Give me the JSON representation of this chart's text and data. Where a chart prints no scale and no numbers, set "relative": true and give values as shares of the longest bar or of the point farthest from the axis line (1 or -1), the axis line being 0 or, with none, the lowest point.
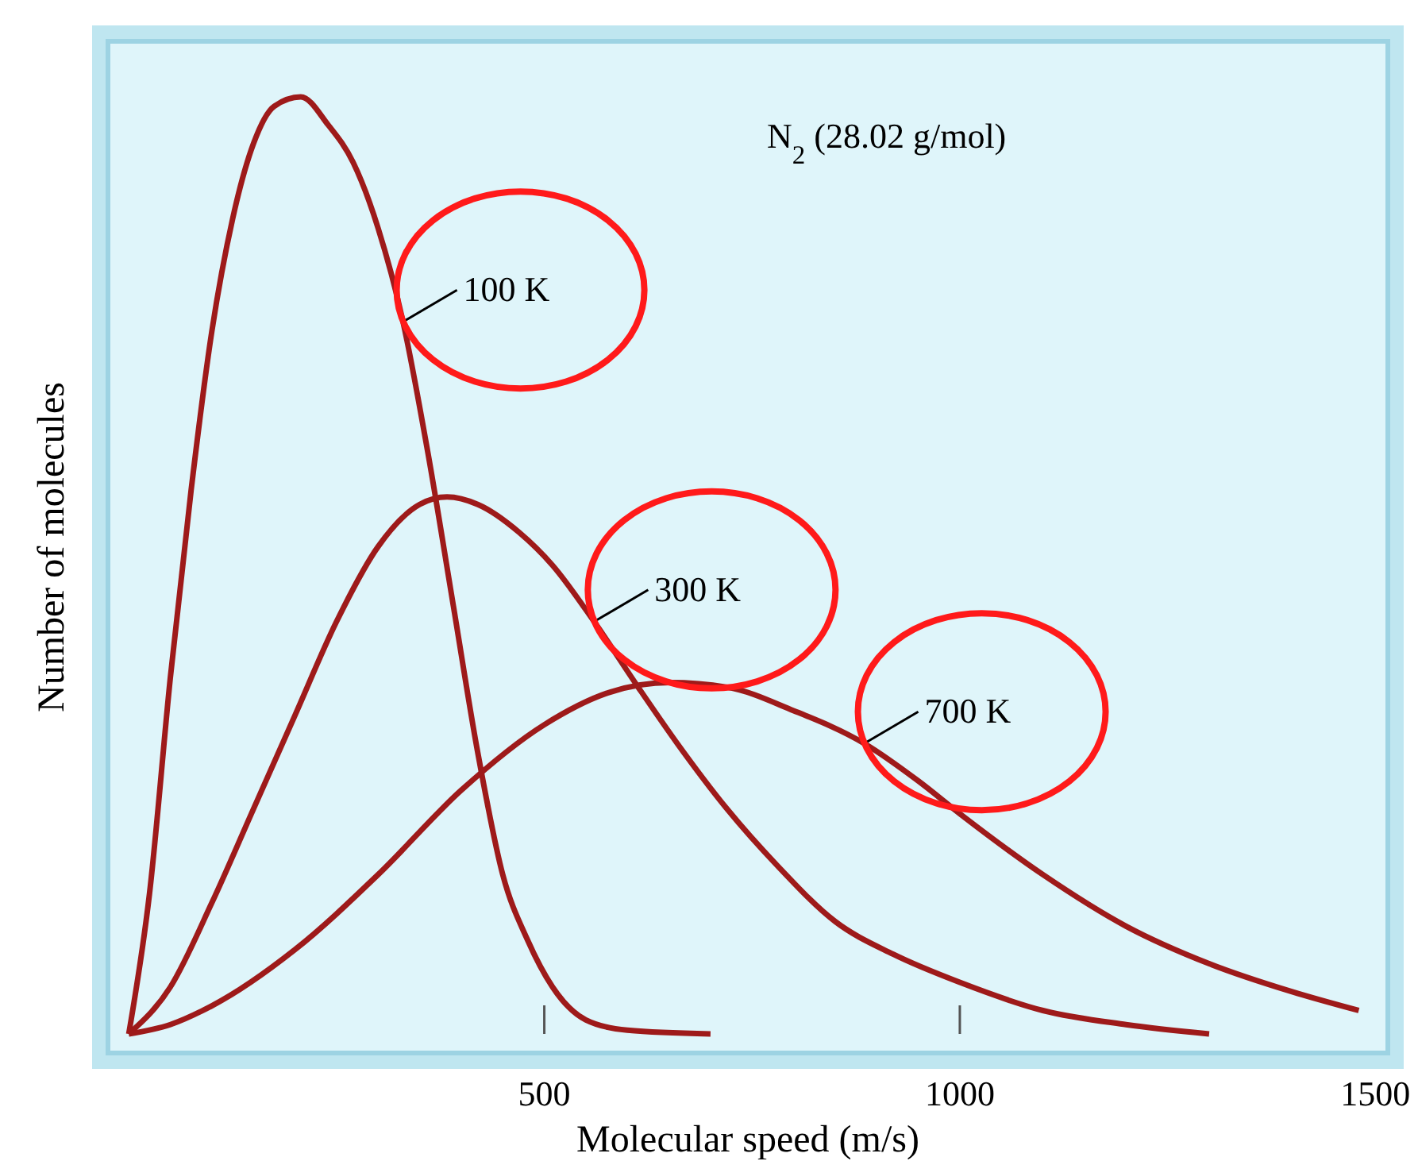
{
  "chart_data": {
    "type": "line",
    "relative": true,
    "xlabel": "Molecular speed (m/s)",
    "ylabel": "Number of molecules",
    "annotations": [
      "N$_{2}$ (28.02 g/mol)"
    ],
    "xlim": [
      -25,
      1515
    ],
    "xticks": [
      500,
      1000,
      1500
    ],
    "grid": false,
    "marker": "none",
    "line_style": "solid",
    "series": [
      {
        "name": "100 K",
        "color": "#9e1a1a",
        "x": [
          0,
          25,
          50,
          75,
          100,
          125,
          150,
          175,
          207,
          240,
          270,
          300,
          330,
          360,
          390,
          420,
          450,
          480,
          510,
          550,
          600,
          700
        ],
        "values": [
          0,
          0.15,
          0.38,
          0.58,
          0.75,
          0.87,
          0.95,
          0.99,
          1,
          0.97,
          0.93,
          0.86,
          0.76,
          0.62,
          0.46,
          0.3,
          0.17,
          0.1,
          0.05,
          0.015,
          0.004,
          0
        ]
      },
      {
        "name": "300 K",
        "color": "#9e1a1a",
        "x": [
          0,
          50,
          100,
          150,
          200,
          250,
          300,
          350,
          383,
          420,
          470,
          510,
          560,
          613,
          660,
          720,
          780,
          850,
          920,
          1000,
          1100,
          1200,
          1300
        ],
        "values": [
          0,
          0.05,
          0.14,
          0.24,
          0.34,
          0.44,
          0.52,
          0.565,
          0.573,
          0.565,
          0.535,
          0.5,
          0.44,
          0.37,
          0.31,
          0.24,
          0.18,
          0.12,
          0.085,
          0.055,
          0.025,
          0.01,
          0
        ]
      },
      {
        "name": "700 K",
        "color": "#9e1a1a",
        "x": [
          0,
          50,
          100,
          200,
          300,
          400,
          500,
          580,
          651,
          720,
          800,
          885,
          950,
          1000,
          1100,
          1200,
          1300,
          1400,
          1480
        ],
        "values": [
          0,
          0.01,
          0.03,
          0.09,
          0.17,
          0.26,
          0.33,
          0.365,
          0.375,
          0.37,
          0.345,
          0.31,
          0.27,
          0.235,
          0.17,
          0.115,
          0.075,
          0.045,
          0.025
        ]
      }
    ]
  }
}
